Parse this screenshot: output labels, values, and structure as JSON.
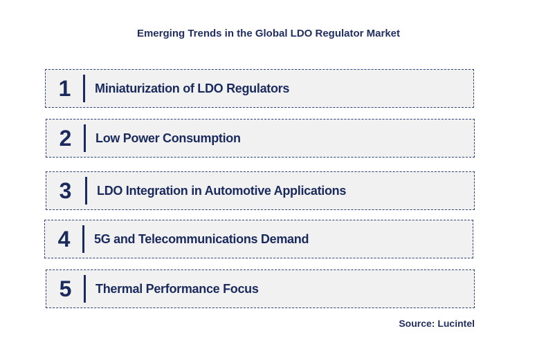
{
  "title": "Emerging Trends in the Global LDO Regulator Market",
  "trends": [
    {
      "number": "1",
      "label": "Miniaturization of LDO Regulators"
    },
    {
      "number": "2",
      "label": "Low Power Consumption"
    },
    {
      "number": "3",
      "label": "LDO Integration in Automotive Applications"
    },
    {
      "number": "4",
      "label": "5G and Telecommunications Demand"
    },
    {
      "number": "5",
      "label": "Thermal Performance Focus"
    }
  ],
  "source": "Source: Lucintel",
  "colors": {
    "text": "#1a2a5c",
    "box_background": "#f1f1f1",
    "border": "#2e3f73"
  }
}
